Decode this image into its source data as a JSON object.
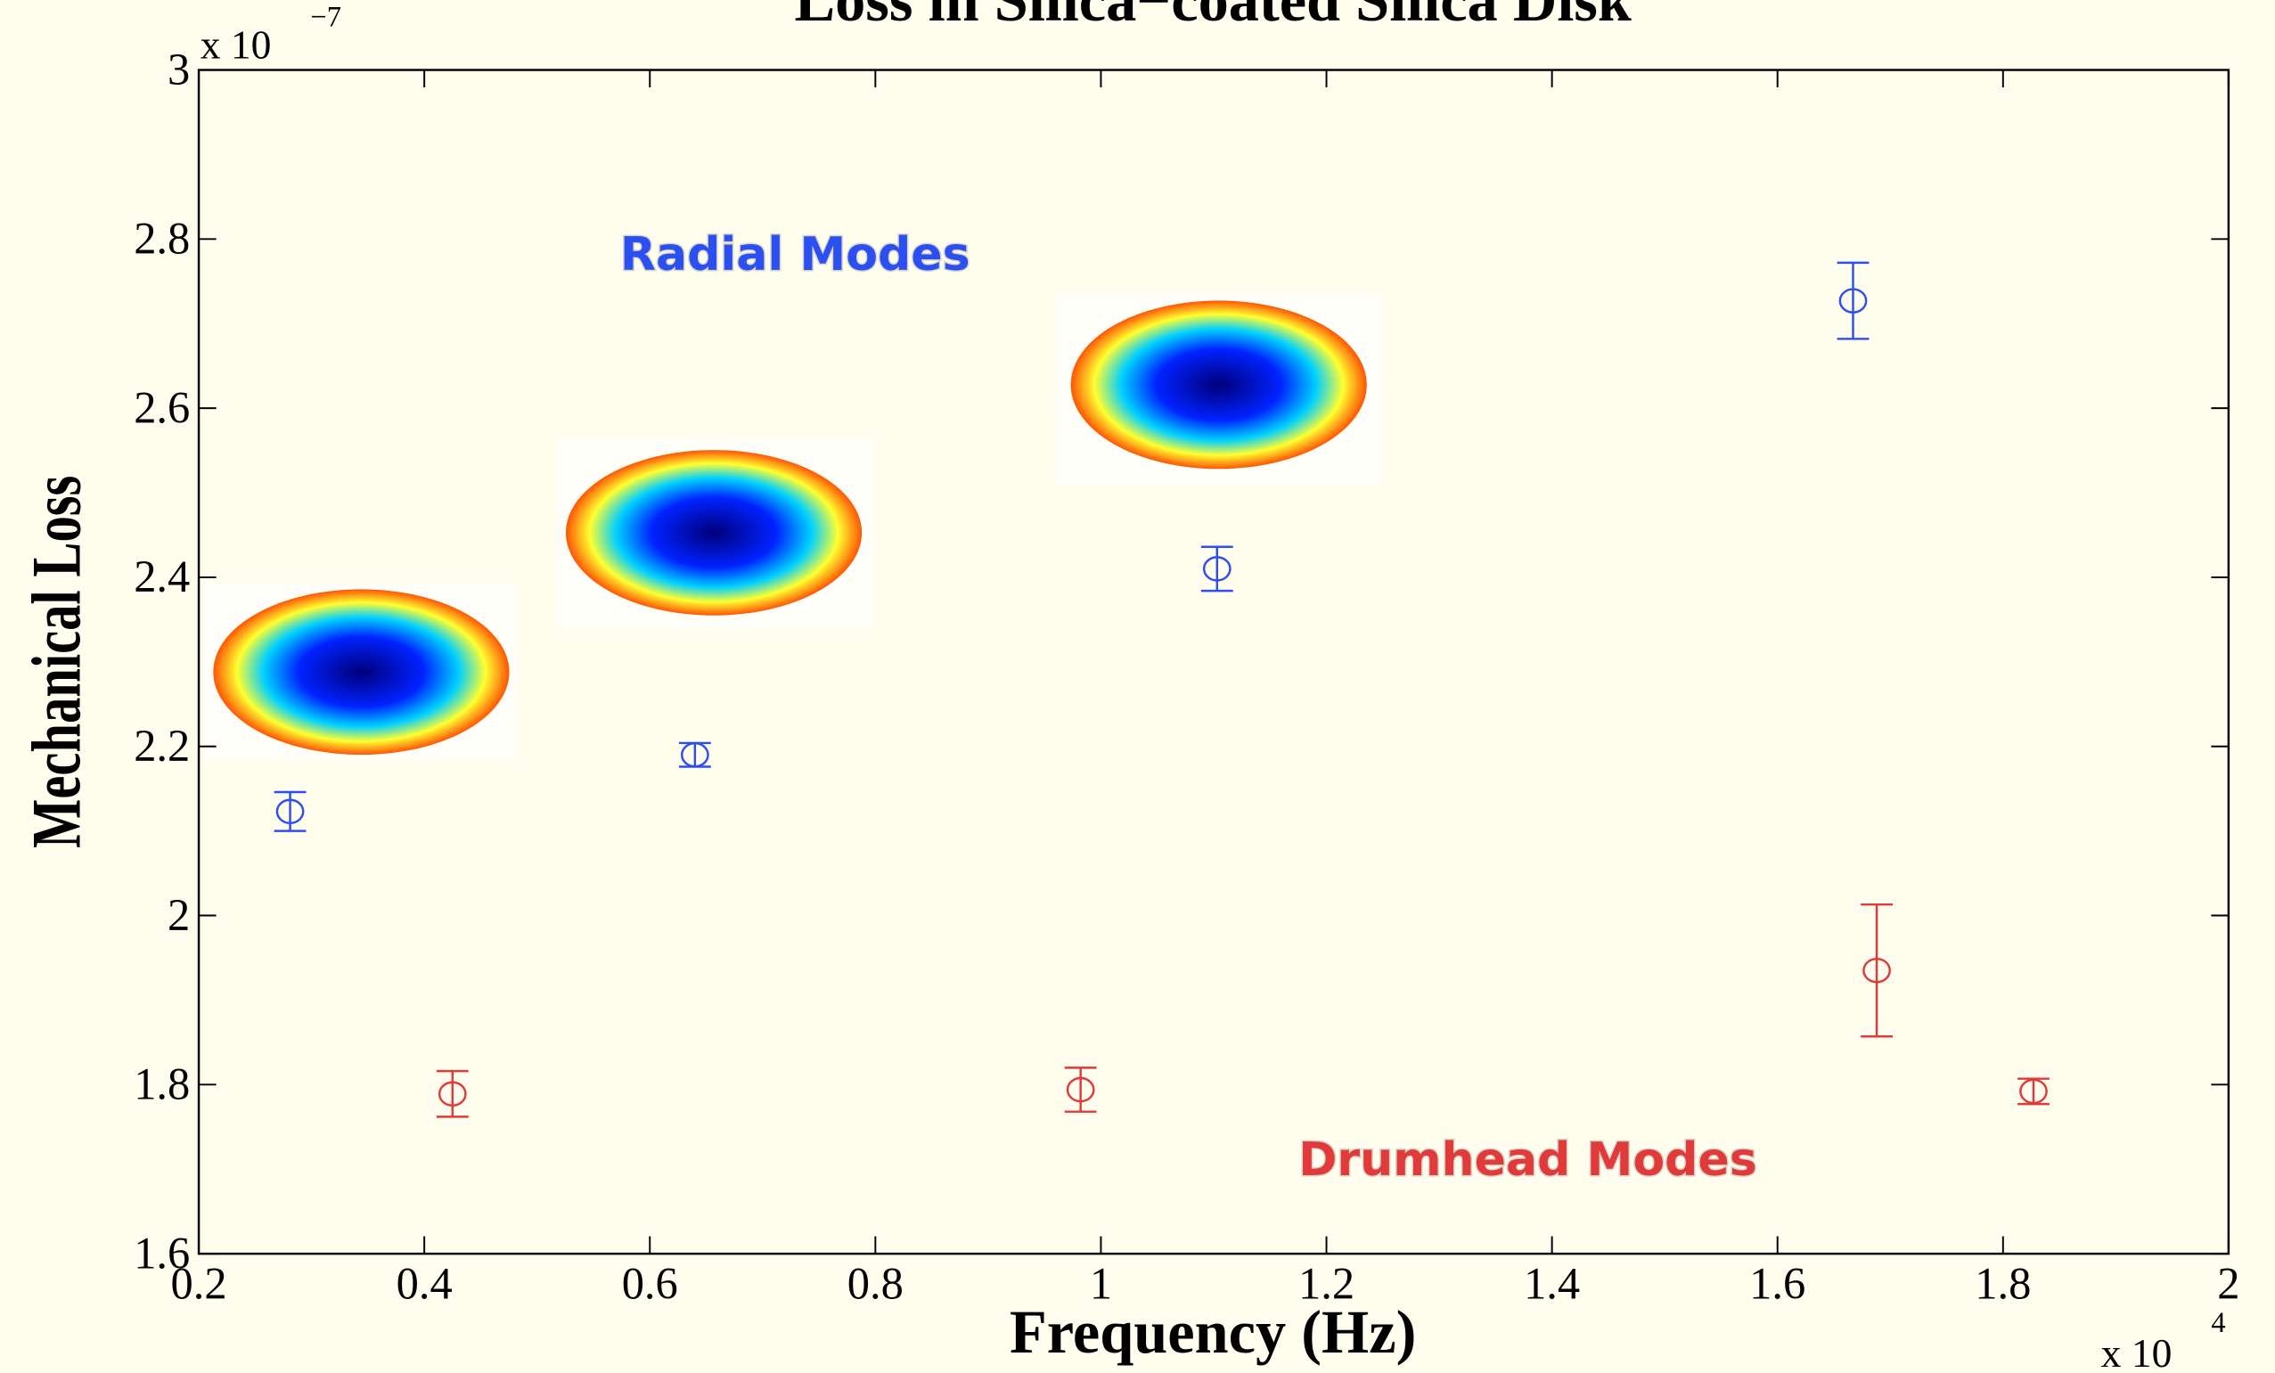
{
  "chart_data": {
    "type": "errorbar",
    "title": "Loss in Silica−coated Silica Disk",
    "x_label": "Frequency (Hz)",
    "y_label": "Mechanical Loss",
    "x_multiplier": "x 10",
    "x_exponent": "4",
    "y_multiplier": "x 10",
    "y_exponent": "−7",
    "xlim": [
      0.2,
      2
    ],
    "ylim": [
      1.6,
      3
    ],
    "xticks": [
      0.2,
      0.4,
      0.6,
      0.8,
      1,
      1.2,
      1.4,
      1.6,
      1.8,
      2
    ],
    "yticks": [
      1.6,
      1.8,
      2,
      2.2,
      2.4,
      2.6,
      2.8,
      3
    ],
    "series": [
      {
        "name": "Radial Modes",
        "color": "#2b4ff0",
        "x": [
          0.281,
          0.64,
          1.103,
          1.667
        ],
        "values": [
          2.123,
          2.19,
          2.41,
          2.727
        ],
        "errors": [
          0.023,
          0.014,
          0.026,
          0.045
        ]
      },
      {
        "name": "Drumhead Modes",
        "color": "#e03a3a",
        "x": [
          0.425,
          0.982,
          1.688,
          1.827
        ],
        "values": [
          1.789,
          1.794,
          1.935,
          1.792
        ],
        "errors": [
          0.027,
          0.026,
          0.078,
          0.015
        ]
      }
    ]
  }
}
